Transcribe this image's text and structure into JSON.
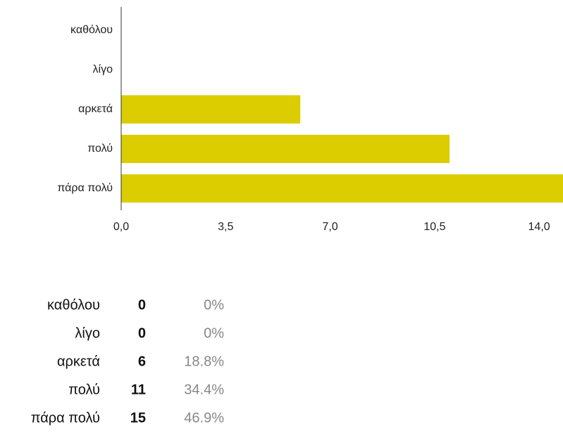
{
  "chart_data": {
    "type": "hbar",
    "categories": [
      "καθόλου",
      "λίγο",
      "αρκετά",
      "πολύ",
      "πάρα πολύ"
    ],
    "values": [
      0,
      0,
      6,
      11,
      15
    ],
    "color": "#dccd00",
    "xlim": [
      0,
      14.8
    ],
    "xticks": [
      {
        "value": 0,
        "label": "0,0"
      },
      {
        "value": 3.5,
        "label": "3,5"
      },
      {
        "value": 7,
        "label": "7,0"
      },
      {
        "value": 10.5,
        "label": "10,5"
      },
      {
        "value": 14,
        "label": "14,0"
      }
    ],
    "percent_labels": [
      "0%",
      "0%",
      "18.8%",
      "34.4%",
      "46.9%"
    ]
  }
}
